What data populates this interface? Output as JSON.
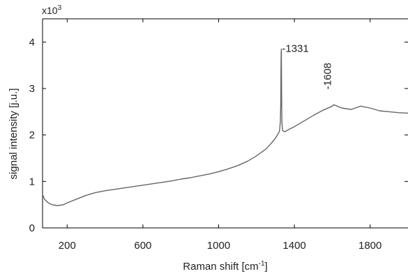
{
  "chart_data": {
    "type": "line",
    "title": "",
    "xlabel": "Raman shift [cm",
    "xlabel_sup": "-1",
    "xlabel_suffix": "]",
    "ylabel": "signal intensity [j.u.]",
    "y_scale_label": "x10",
    "y_scale_exp": "3",
    "xlim": [
      70,
      2000
    ],
    "ylim": [
      0,
      4.5
    ],
    "x_ticks": [
      200,
      600,
      1000,
      1400,
      1800
    ],
    "y_ticks": [
      0,
      1,
      2,
      3,
      4
    ],
    "grid": false,
    "legend": "none",
    "line_color": "#666666",
    "annotations": [
      {
        "label": "-1331",
        "x": 1331,
        "y": 3.85,
        "orientation": "horizontal"
      },
      {
        "label": "-1608",
        "x": 1608,
        "y": 2.95,
        "orientation": "vertical"
      }
    ],
    "series": [
      {
        "x": [
          70,
          80,
          100,
          120,
          150,
          180,
          200,
          250,
          300,
          350,
          400,
          450,
          500,
          550,
          600,
          650,
          700,
          750,
          800,
          850,
          900,
          950,
          1000,
          1050,
          1100,
          1150,
          1200,
          1250,
          1280,
          1300,
          1310,
          1318,
          1322,
          1326,
          1328,
          1329,
          1330,
          1331,
          1332,
          1333,
          1334,
          1336,
          1338,
          1342,
          1350,
          1370,
          1400,
          1450,
          1500,
          1550,
          1600,
          1608,
          1650,
          1700,
          1750,
          1800,
          1850,
          1900,
          1950,
          2000
        ],
        "y": [
          0.72,
          0.62,
          0.54,
          0.5,
          0.48,
          0.5,
          0.54,
          0.62,
          0.7,
          0.76,
          0.8,
          0.83,
          0.86,
          0.89,
          0.92,
          0.95,
          0.98,
          1.01,
          1.05,
          1.08,
          1.12,
          1.16,
          1.21,
          1.27,
          1.34,
          1.43,
          1.55,
          1.7,
          1.83,
          1.93,
          2.0,
          2.05,
          2.1,
          2.3,
          2.7,
          3.3,
          3.75,
          3.85,
          3.3,
          2.6,
          2.3,
          2.15,
          2.1,
          2.08,
          2.07,
          2.12,
          2.18,
          2.3,
          2.42,
          2.53,
          2.62,
          2.65,
          2.58,
          2.55,
          2.62,
          2.58,
          2.52,
          2.5,
          2.48,
          2.47
        ]
      }
    ]
  }
}
